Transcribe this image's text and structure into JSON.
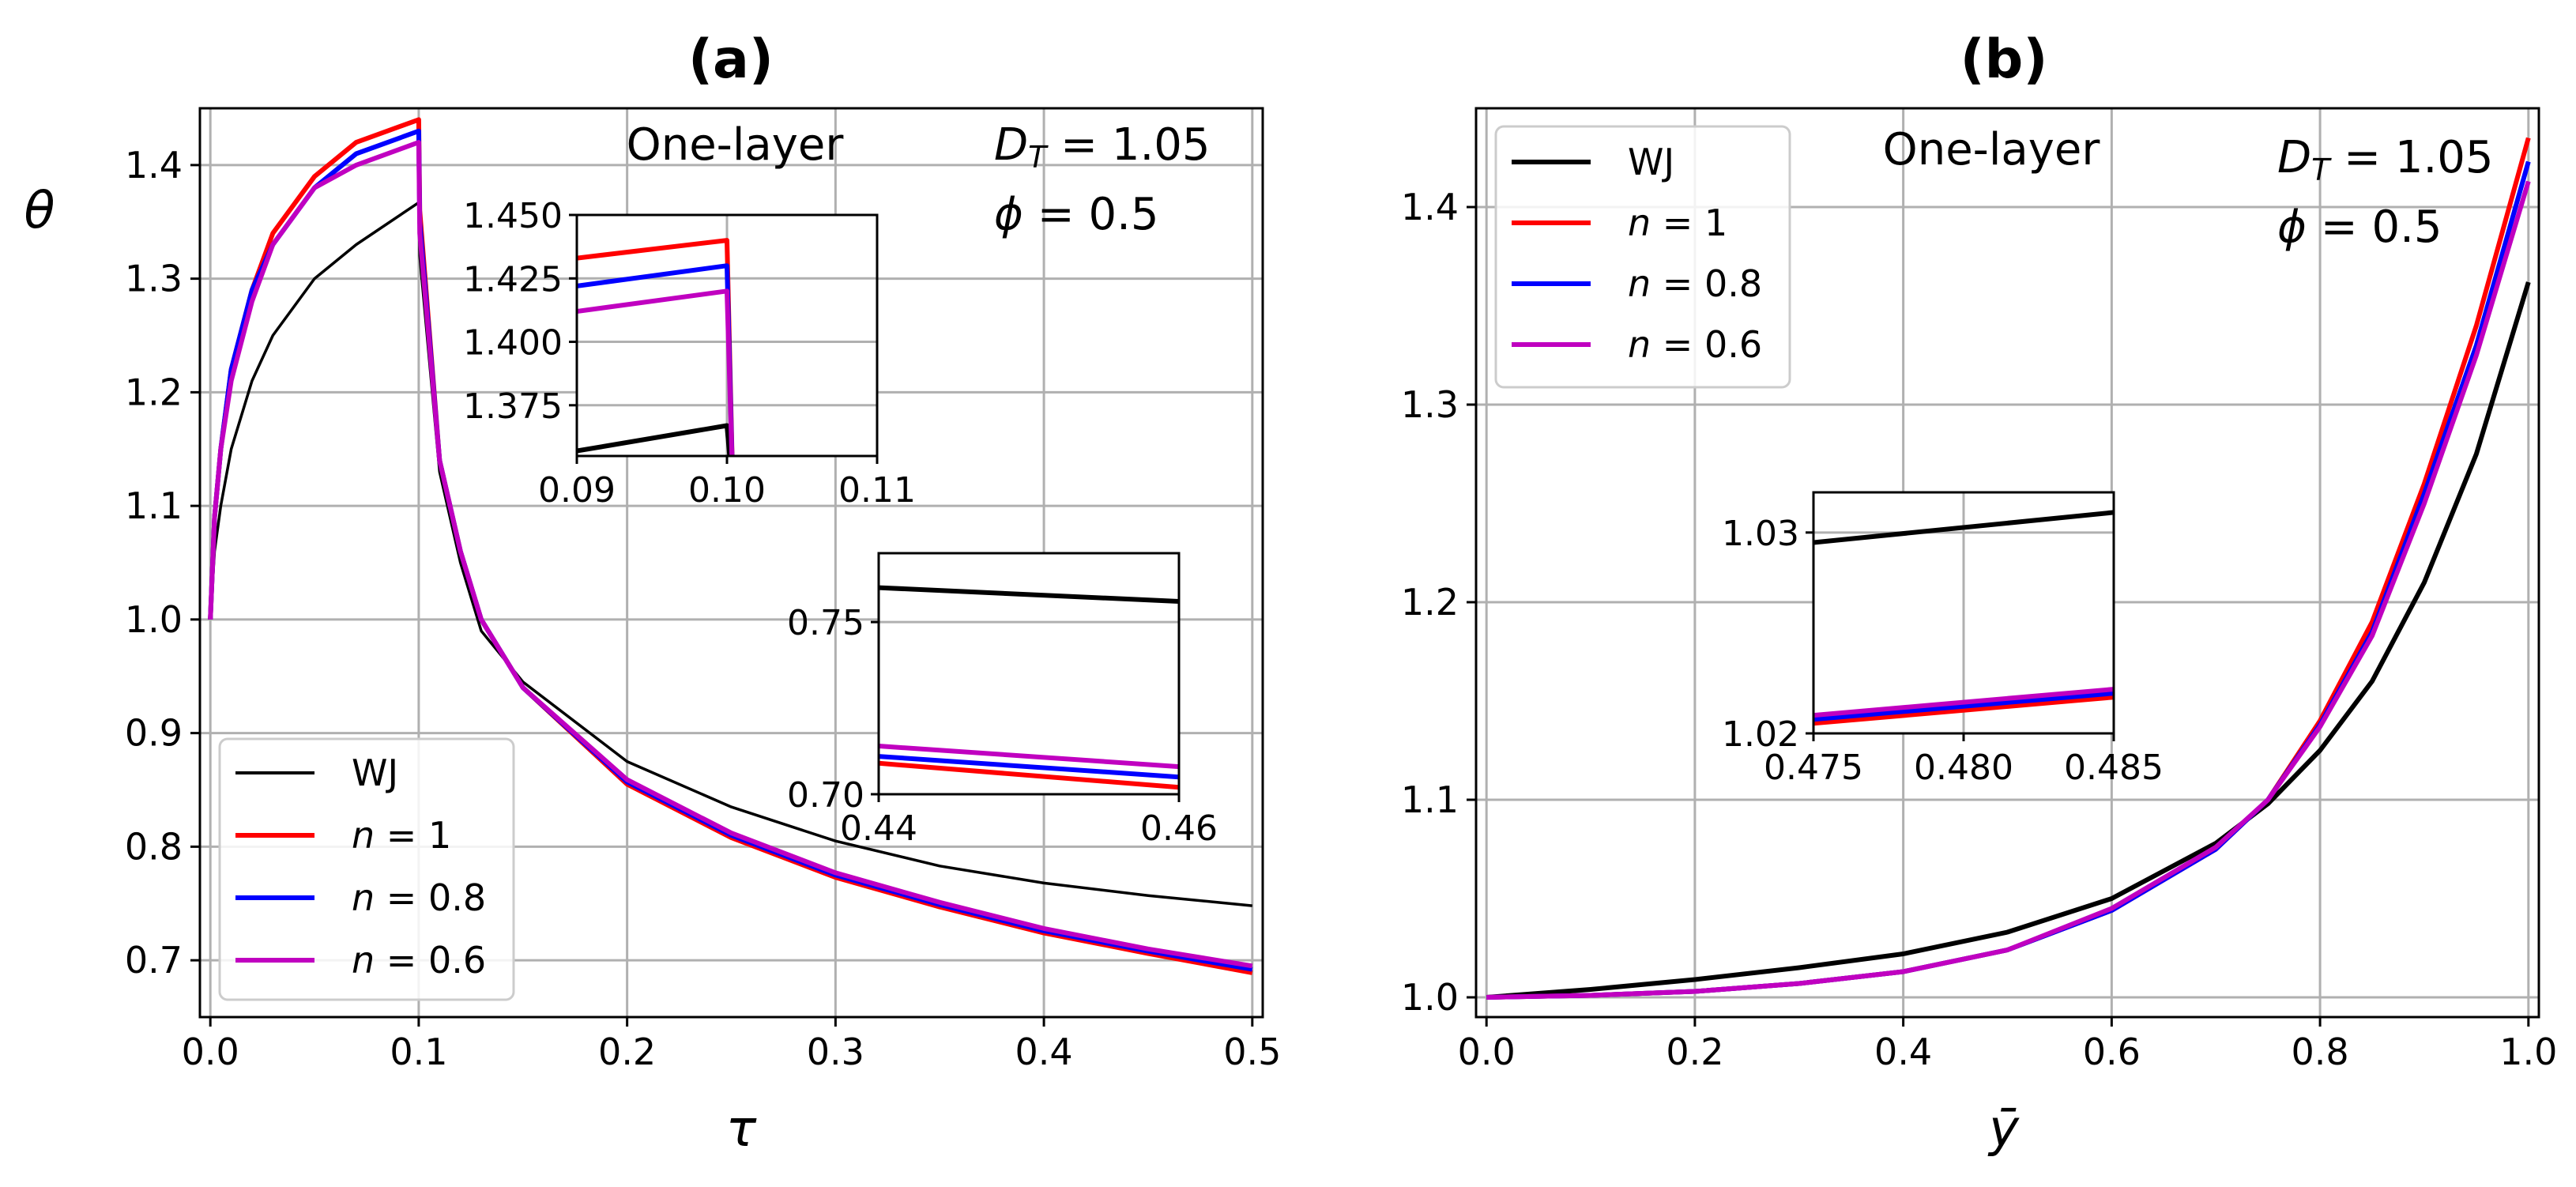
{
  "chart_data": [
    {
      "id": "a",
      "type": "line",
      "title": "(a)",
      "xlabel": "τ",
      "ylabel": "θ",
      "xlim": [
        -0.005,
        0.505
      ],
      "ylim": [
        0.65,
        1.45
      ],
      "xticks": [
        0.0,
        0.1,
        0.2,
        0.3,
        0.4,
        0.5
      ],
      "xtick_labels": [
        "0.0",
        "0.1",
        "0.2",
        "0.3",
        "0.4",
        "0.5"
      ],
      "yticks": [
        0.7,
        0.8,
        0.9,
        1.0,
        1.1,
        1.2,
        1.3,
        1.4
      ],
      "ytick_labels": [
        "0.7",
        "0.8",
        "0.9",
        "1.0",
        "1.1",
        "1.2",
        "1.3",
        "1.4"
      ],
      "grid": true,
      "legend_position": "lower-left",
      "annotations": [
        "One-layer",
        "D_T = 1.05",
        "ϕ = 0.5"
      ],
      "series": [
        {
          "name": "WJ",
          "label_italic": "",
          "label_rest": "WJ",
          "color": "#000000",
          "x": [
            0,
            0.002,
            0.005,
            0.01,
            0.02,
            0.03,
            0.05,
            0.07,
            0.1,
            0.1005,
            0.11,
            0.12,
            0.13,
            0.15,
            0.2,
            0.25,
            0.3,
            0.35,
            0.4,
            0.45,
            0.5
          ],
          "y": [
            1.0,
            1.06,
            1.1,
            1.15,
            1.21,
            1.25,
            1.3,
            1.33,
            1.367,
            1.32,
            1.13,
            1.05,
            0.99,
            0.945,
            0.875,
            0.835,
            0.805,
            0.783,
            0.768,
            0.757,
            0.748
          ]
        },
        {
          "name": "n = 1",
          "label_italic": "n",
          "label_rest": " = 1",
          "color": "#ff0000",
          "x": [
            0,
            0.002,
            0.005,
            0.01,
            0.02,
            0.03,
            0.05,
            0.07,
            0.1,
            0.1005,
            0.11,
            0.12,
            0.13,
            0.15,
            0.2,
            0.25,
            0.3,
            0.35,
            0.4,
            0.45,
            0.5
          ],
          "y": [
            1.0,
            1.09,
            1.15,
            1.22,
            1.29,
            1.34,
            1.39,
            1.42,
            1.44,
            1.36,
            1.14,
            1.06,
            1.0,
            0.94,
            0.855,
            0.808,
            0.773,
            0.747,
            0.724,
            0.706,
            0.689
          ]
        },
        {
          "name": "n = 0.8",
          "label_italic": "n",
          "label_rest": " = 0.8",
          "color": "#0000ff",
          "x": [
            0,
            0.002,
            0.005,
            0.01,
            0.02,
            0.03,
            0.05,
            0.07,
            0.1,
            0.1005,
            0.11,
            0.12,
            0.13,
            0.15,
            0.2,
            0.25,
            0.3,
            0.35,
            0.4,
            0.45,
            0.5
          ],
          "y": [
            1.0,
            1.09,
            1.15,
            1.22,
            1.29,
            1.33,
            1.38,
            1.41,
            1.43,
            1.35,
            1.14,
            1.06,
            1.0,
            0.94,
            0.857,
            0.81,
            0.775,
            0.749,
            0.726,
            0.708,
            0.692
          ]
        },
        {
          "name": "n = 0.6",
          "label_italic": "n",
          "label_rest": " = 0.6",
          "color": "#c000c0",
          "x": [
            0,
            0.002,
            0.005,
            0.01,
            0.02,
            0.03,
            0.05,
            0.07,
            0.1,
            0.1005,
            0.11,
            0.12,
            0.13,
            0.15,
            0.2,
            0.25,
            0.3,
            0.35,
            0.4,
            0.45,
            0.5
          ],
          "y": [
            1.0,
            1.09,
            1.15,
            1.21,
            1.28,
            1.33,
            1.38,
            1.4,
            1.42,
            1.34,
            1.14,
            1.06,
            1.0,
            0.94,
            0.859,
            0.812,
            0.777,
            0.751,
            0.728,
            0.71,
            0.695
          ]
        }
      ],
      "insets": [
        {
          "xlim": [
            0.09,
            0.11
          ],
          "ylim": [
            1.355,
            1.45
          ],
          "xticks": [
            0.09,
            0.1,
            0.11
          ],
          "xtick_labels": [
            "0.09",
            "0.10",
            "0.11"
          ],
          "yticks": [
            1.375,
            1.4,
            1.425,
            1.45
          ],
          "ytick_labels": [
            "1.375",
            "1.400",
            "1.425",
            "1.450"
          ],
          "series": [
            {
              "name": "WJ",
              "color": "#000000",
              "x": [
                0.09,
                0.1,
                0.1,
                0.1004
              ],
              "y": [
                1.357,
                1.367,
                1.367,
                1.34
              ]
            },
            {
              "name": "n = 1",
              "color": "#ff0000",
              "x": [
                0.09,
                0.1,
                0.1,
                0.1004
              ],
              "y": [
                1.433,
                1.44,
                1.44,
                1.34
              ]
            },
            {
              "name": "n = 0.8",
              "color": "#0000ff",
              "x": [
                0.09,
                0.1,
                0.1,
                0.1004
              ],
              "y": [
                1.422,
                1.43,
                1.43,
                1.34
              ]
            },
            {
              "name": "n = 0.6",
              "color": "#c000c0",
              "x": [
                0.09,
                0.1,
                0.1,
                0.1004
              ],
              "y": [
                1.412,
                1.42,
                1.42,
                1.34
              ]
            }
          ]
        },
        {
          "xlim": [
            0.44,
            0.46
          ],
          "ylim": [
            0.7,
            0.77
          ],
          "xticks": [
            0.44,
            0.46
          ],
          "xtick_labels": [
            "0.44",
            "0.46"
          ],
          "yticks": [
            0.7,
            0.75
          ],
          "ytick_labels": [
            "0.70",
            "0.75"
          ],
          "series": [
            {
              "name": "WJ",
              "color": "#000000",
              "x": [
                0.44,
                0.46
              ],
              "y": [
                0.76,
                0.756
              ]
            },
            {
              "name": "n = 1",
              "color": "#ff0000",
              "x": [
                0.44,
                0.46
              ],
              "y": [
                0.709,
                0.702
              ]
            },
            {
              "name": "n = 0.8",
              "color": "#0000ff",
              "x": [
                0.44,
                0.46
              ],
              "y": [
                0.711,
                0.705
              ]
            },
            {
              "name": "n = 0.6",
              "color": "#c000c0",
              "x": [
                0.44,
                0.46
              ],
              "y": [
                0.714,
                0.708
              ]
            }
          ]
        }
      ]
    },
    {
      "id": "b",
      "type": "line",
      "title": "(b)",
      "xlabel": "ȳ",
      "ylabel": "",
      "xlim": [
        -0.01,
        1.01
      ],
      "ylim": [
        0.99,
        1.45
      ],
      "xticks": [
        0.0,
        0.2,
        0.4,
        0.6,
        0.8,
        1.0
      ],
      "xtick_labels": [
        "0.0",
        "0.2",
        "0.4",
        "0.6",
        "0.8",
        "1.0"
      ],
      "yticks": [
        1.0,
        1.1,
        1.2,
        1.3,
        1.4
      ],
      "ytick_labels": [
        "1.0",
        "1.1",
        "1.2",
        "1.3",
        "1.4"
      ],
      "grid": true,
      "legend_position": "upper-left",
      "annotations": [
        "One-layer",
        "D_T = 1.05",
        "ϕ = 0.5"
      ],
      "series": [
        {
          "name": "WJ",
          "label_italic": "",
          "label_rest": "WJ",
          "color": "#000000",
          "x": [
            0,
            0.1,
            0.2,
            0.3,
            0.4,
            0.5,
            0.6,
            0.7,
            0.75,
            0.8,
            0.85,
            0.9,
            0.95,
            1.0
          ],
          "y": [
            1.0,
            1.004,
            1.009,
            1.015,
            1.022,
            1.033,
            1.05,
            1.078,
            1.098,
            1.125,
            1.16,
            1.21,
            1.275,
            1.362
          ]
        },
        {
          "name": "n = 1",
          "label_italic": "n",
          "label_rest": " = 1",
          "color": "#ff0000",
          "x": [
            0,
            0.1,
            0.2,
            0.3,
            0.4,
            0.5,
            0.6,
            0.7,
            0.75,
            0.8,
            0.85,
            0.9,
            0.95,
            1.0
          ],
          "y": [
            1.0,
            1.001,
            1.003,
            1.007,
            1.013,
            1.024,
            1.044,
            1.075,
            1.1,
            1.14,
            1.19,
            1.26,
            1.34,
            1.435
          ]
        },
        {
          "name": "n = 0.8",
          "label_italic": "n",
          "label_rest": " = 0.8",
          "color": "#0000ff",
          "x": [
            0,
            0.1,
            0.2,
            0.3,
            0.4,
            0.5,
            0.6,
            0.7,
            0.75,
            0.8,
            0.85,
            0.9,
            0.95,
            1.0
          ],
          "y": [
            1.0,
            1.001,
            1.003,
            1.007,
            1.013,
            1.024,
            1.044,
            1.075,
            1.1,
            1.138,
            1.185,
            1.255,
            1.33,
            1.423
          ]
        },
        {
          "name": "n = 0.6",
          "label_italic": "n",
          "label_rest": " = 0.6",
          "color": "#c000c0",
          "x": [
            0,
            0.1,
            0.2,
            0.3,
            0.4,
            0.5,
            0.6,
            0.7,
            0.75,
            0.8,
            0.85,
            0.9,
            0.95,
            1.0
          ],
          "y": [
            1.0,
            1.001,
            1.003,
            1.007,
            1.013,
            1.024,
            1.045,
            1.076,
            1.1,
            1.137,
            1.183,
            1.25,
            1.325,
            1.413
          ]
        }
      ],
      "insets": [
        {
          "xlim": [
            0.475,
            0.485
          ],
          "ylim": [
            1.02,
            1.032
          ],
          "xticks": [
            0.475,
            0.48,
            0.485
          ],
          "xtick_labels": [
            "0.475",
            "0.480",
            "0.485"
          ],
          "yticks": [
            1.02,
            1.03
          ],
          "ytick_labels": [
            "1.02",
            "1.03"
          ],
          "series": [
            {
              "name": "WJ",
              "color": "#000000",
              "x": [
                0.475,
                0.485
              ],
              "y": [
                1.0295,
                1.031
              ]
            },
            {
              "name": "n = 1",
              "color": "#ff0000",
              "x": [
                0.475,
                0.485
              ],
              "y": [
                1.0205,
                1.0218
              ]
            },
            {
              "name": "n = 0.8",
              "color": "#0000ff",
              "x": [
                0.475,
                0.485
              ],
              "y": [
                1.0207,
                1.022
              ]
            },
            {
              "name": "n = 0.6",
              "color": "#c000c0",
              "x": [
                0.475,
                0.485
              ],
              "y": [
                1.0209,
                1.0222
              ]
            }
          ]
        }
      ]
    }
  ]
}
